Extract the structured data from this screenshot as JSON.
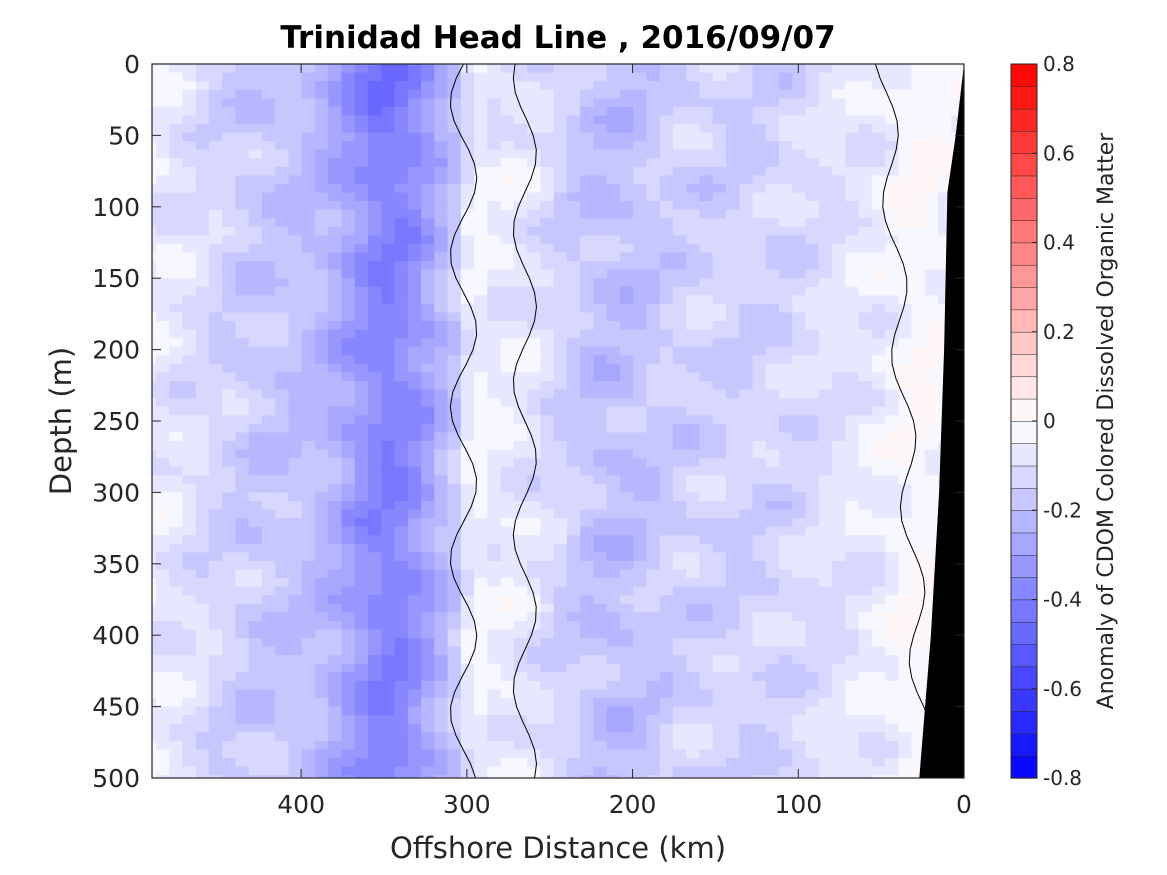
{
  "chart_data": {
    "type": "heatmap",
    "title": "Trinidad Head Line , 2016/09/07",
    "xlabel": "Offshore Distance (km)",
    "ylabel": "Depth (m)",
    "xlim": [
      490,
      0
    ],
    "ylim": [
      0,
      500
    ],
    "x_reversed": true,
    "y_reversed": true,
    "x_ticks": [
      "400",
      "300",
      "200",
      "100",
      "0"
    ],
    "x_tick_values": [
      400,
      300,
      200,
      100,
      0
    ],
    "y_ticks": [
      "0",
      "50",
      "100",
      "150",
      "200",
      "250",
      "300",
      "350",
      "400",
      "450",
      "500"
    ],
    "y_tick_values": [
      0,
      50,
      100,
      150,
      200,
      250,
      300,
      350,
      400,
      450,
      500
    ],
    "colorbar": {
      "label": "Anomaly of CDOM Colored Dissolved Organic Matter",
      "range": [
        -0.8,
        0.8
      ],
      "levels": 32,
      "ticks": [
        "0.8",
        "0.6",
        "0.4",
        "0.2",
        "0",
        "-0.2",
        "-0.4",
        "-0.6",
        "-0.8"
      ],
      "tick_values": [
        0.8,
        0.6,
        0.4,
        0.2,
        0,
        -0.2,
        -0.4,
        -0.6,
        -0.8
      ],
      "colormap": "blue-white-red",
      "low_color": "#0000ff",
      "mid_color": "#ffffff",
      "high_color": "#ff0000"
    },
    "bathymetry": {
      "color": "#000000",
      "seafloor": [
        {
          "distance": 0,
          "depth": 0
        },
        {
          "distance": 5,
          "depth": 50
        },
        {
          "distance": 10,
          "depth": 90
        },
        {
          "distance": 12,
          "depth": 200
        },
        {
          "distance": 15,
          "depth": 300
        },
        {
          "distance": 20,
          "depth": 400
        },
        {
          "distance": 27,
          "depth": 500
        }
      ]
    },
    "zero_contour_color": "#000000",
    "anomaly_grid": {
      "distance_km": [
        490,
        470,
        450,
        430,
        410,
        390,
        370,
        350,
        330,
        310,
        290,
        270,
        250,
        230,
        210,
        190,
        170,
        150,
        130,
        110,
        90,
        70,
        50,
        30,
        10
      ],
      "depth_m": [
        0,
        25,
        50,
        75,
        100,
        125,
        150,
        175,
        200,
        225,
        250,
        275,
        300,
        325,
        350,
        375,
        400,
        425,
        450,
        475,
        500
      ],
      "description_of_pattern": "negative core 390-320 km strongest; near-zero band ~290-270 km; moderate negative 250-190 km; weak negative/white 180-60 km; slightly positive near coast 50-20 km"
    }
  }
}
